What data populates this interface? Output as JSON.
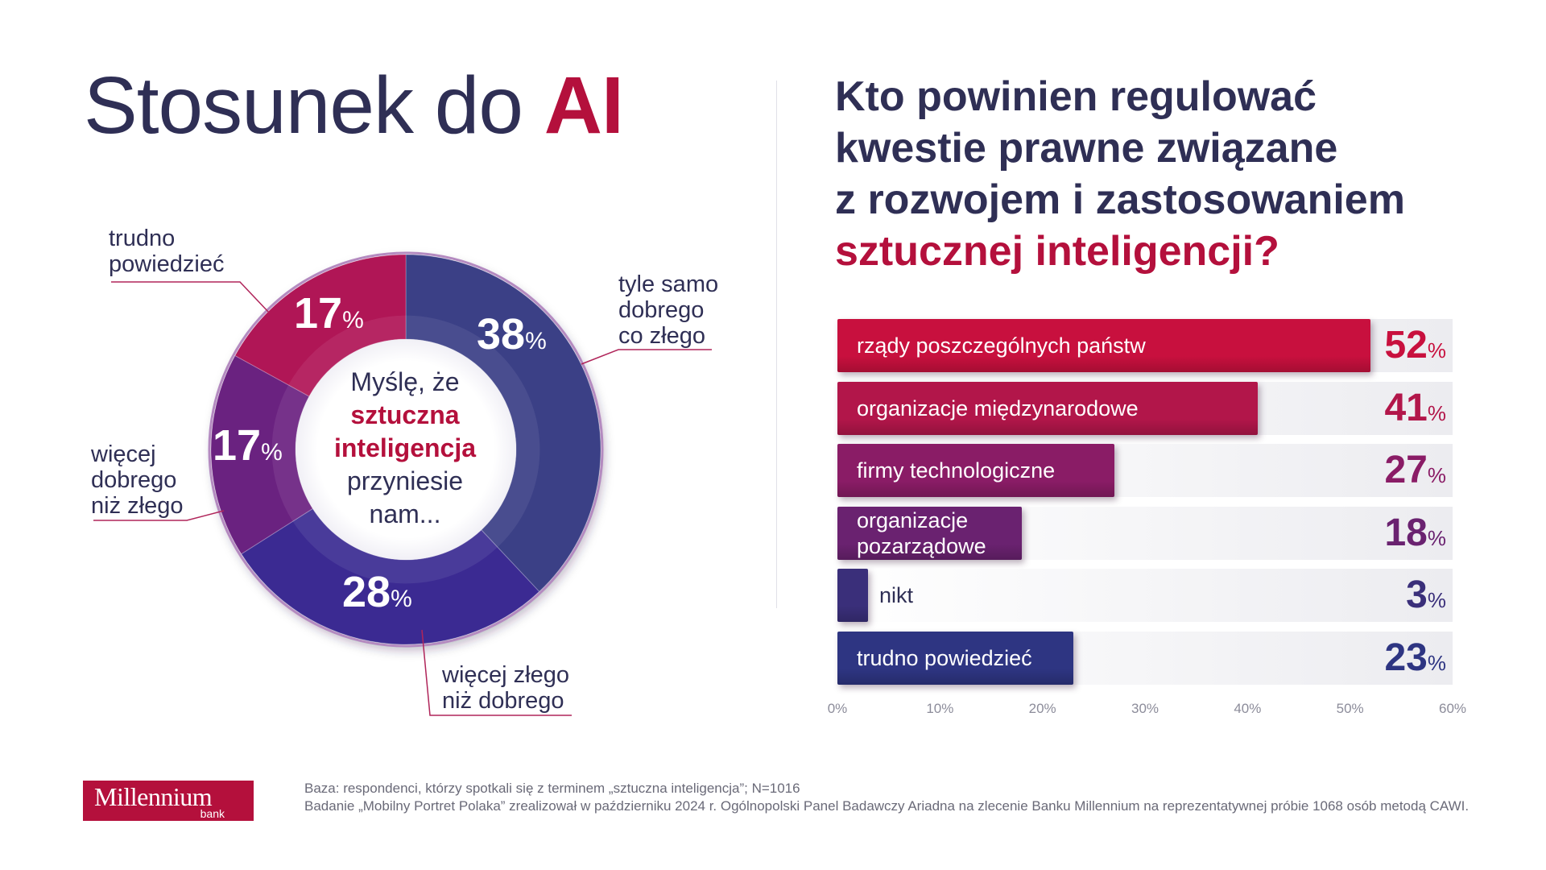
{
  "left": {
    "title_plain": "Stosunek do",
    "title_accent": "AI",
    "center_text": [
      "Myślę, że",
      "sztuczna",
      "inteligencja",
      "przyniesie",
      "nam..."
    ]
  },
  "right": {
    "question_lines": [
      "Kto powinien regulować",
      "kwestie prawne związane",
      "z rozwojem i zastosowaniem"
    ],
    "question_accent": "sztucznej inteligencji?"
  },
  "pct_symbol": "%",
  "chart_data": [
    {
      "type": "pie",
      "variant": "donut",
      "slices": [
        {
          "label": "tyle samo dobrego co złego",
          "value": 38,
          "color": "#3a3f86"
        },
        {
          "label": "więcej złego niż dobrego",
          "value": 28,
          "color": "#3b2a92"
        },
        {
          "label": "więcej dobrego niż złego",
          "value": 17,
          "color": "#6b2080"
        },
        {
          "label": "trudno powiedzieć",
          "value": 17,
          "color": "#b01456"
        }
      ],
      "label_lines": [
        [
          "tyle samo",
          "dobrego",
          "co złego"
        ],
        [
          "więcej złego",
          "niż dobrego"
        ],
        [
          "więcej",
          "dobrego",
          "niż złego"
        ],
        [
          "trudno",
          "powiedzieć"
        ]
      ],
      "center_text": "Myślę, że sztuczna inteligencja przyniesie nam..."
    },
    {
      "type": "bar",
      "orientation": "horizontal",
      "categories": [
        "rządy poszczególnych państw",
        "organizacje międzynarodowe",
        "firmy technologiczne",
        "organizacje pozarządowe",
        "nikt",
        "trudno powiedzieć"
      ],
      "category_lines": [
        [
          "rządy poszczególnych państw"
        ],
        [
          "organizacje międzynarodowe"
        ],
        [
          "firmy technologiczne"
        ],
        [
          "organizacje",
          "pozarządowe"
        ],
        [
          "nikt"
        ],
        [
          "trudno powiedzieć"
        ]
      ],
      "values": [
        52,
        41,
        27,
        18,
        3,
        23
      ],
      "colors": [
        "#c8103e",
        "#b2164a",
        "#8a1c66",
        "#6a2270",
        "#3a2f7a",
        "#2e3582"
      ],
      "xlim": [
        0,
        60
      ],
      "xticks": [
        "0%",
        "10%",
        "20%",
        "30%",
        "40%",
        "50%",
        "60%"
      ],
      "grid": false,
      "legend": "none"
    }
  ],
  "footer": {
    "logo_main": "Millennium",
    "logo_sub": "bank",
    "note_1": "Baza: respondenci, którzy spotkali się z terminem „sztuczna inteligencja”; N=1016",
    "note_2": "Badanie „Mobilny Portret Polaka” zrealizował w październiku 2024 r. Ogólnopolski Panel Badawczy Ariadna na zlecenie Banku Millennium na reprezentatywnej próbie 1068 osób metodą CAWI."
  }
}
